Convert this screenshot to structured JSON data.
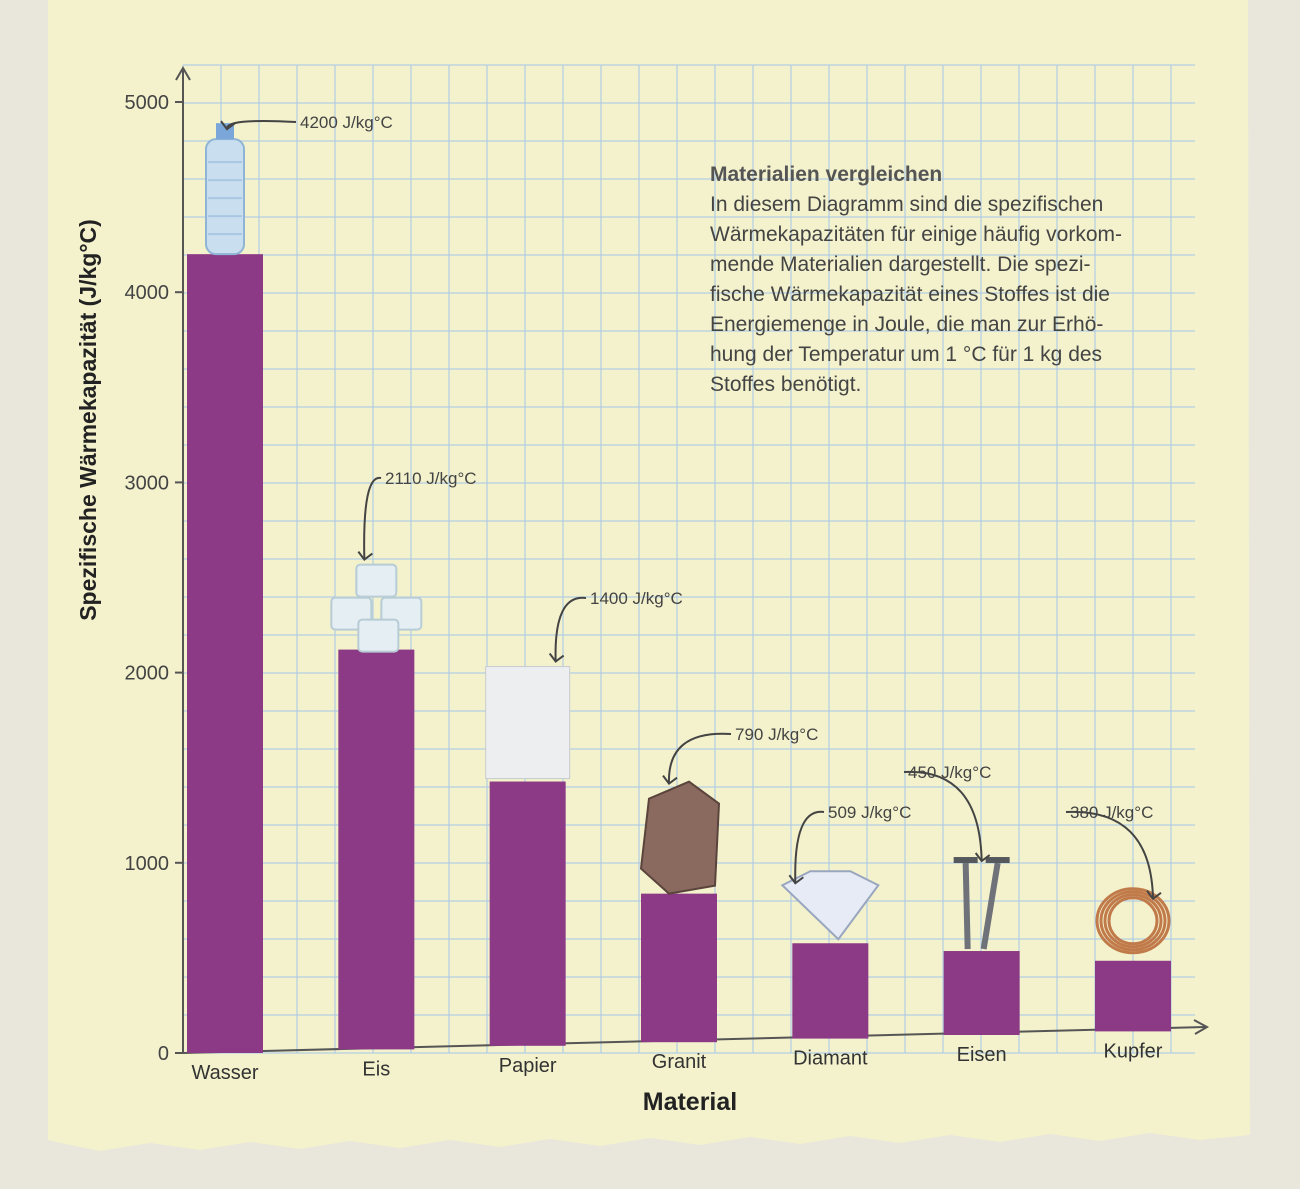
{
  "colors": {
    "paper": "#f3f2cc",
    "grid": "#a6c6e8",
    "bar": "#8c3a85",
    "axis": "#555555"
  },
  "chart_data": {
    "type": "bar",
    "title": "",
    "xlabel": "Material",
    "ylabel": "Spezifische Wärmekapazität (J/kg°C)",
    "ylim": [
      0,
      5000
    ],
    "yticks": [
      "0",
      "1000",
      "2000",
      "3000",
      "4000",
      "5000"
    ],
    "categories": [
      "Wasser",
      "Eis",
      "Papier",
      "Granit",
      "Diamant",
      "Eisen",
      "Kupfer"
    ],
    "values": [
      4200,
      2110,
      1400,
      790,
      509,
      450,
      380
    ],
    "data_labels": [
      "4200 J/kg°C",
      "2110 J/kg°C",
      "1400 J/kg°C",
      "790 J/kg°C",
      "509 J/kg°C",
      "450 J/kg°C",
      "380 J/kg°C"
    ],
    "icons": [
      "water-bottle-icon",
      "ice-cubes-icon",
      "paper-sheet-icon",
      "granite-rock-icon",
      "diamond-icon",
      "iron-screws-icon",
      "copper-coil-icon"
    ],
    "grid": true
  },
  "info": {
    "title": "Materialien vergleichen",
    "body": "In diesem Diagramm sind die spezifischen\nWärmekapazitäten für einige häufig vorkom-\nmende Materialien dargestellt. Die spezi-\nfische Wärmekapazität eines Stoffes ist die\nEnergiemenge in Joule, die man zur Erhö-\nhung der Temperatur um 1 °C für 1 kg des\nStoffes benötigt."
  }
}
